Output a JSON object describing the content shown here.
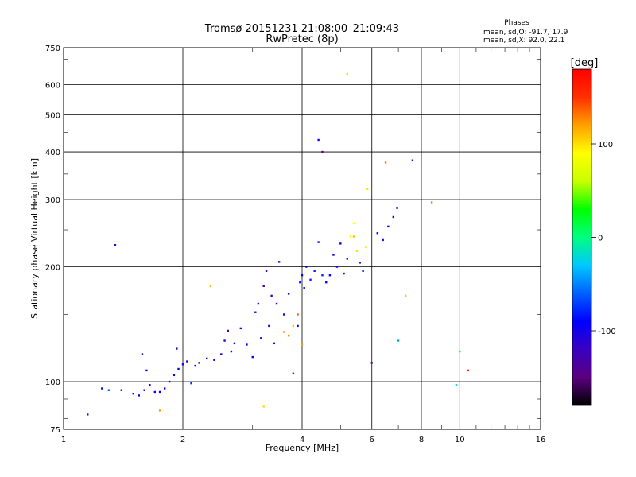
{
  "chart_data": {
    "type": "scatter",
    "title": "Tromsø 20151231 21:08:00–21:09:43",
    "subtitle": "RwPretec (8p)",
    "xlabel": "Frequency [MHz]",
    "ylabel": "Stationary phase Virtual Height [km]",
    "x_scale": "log",
    "y_scale": "log",
    "xlim": [
      1,
      16
    ],
    "ylim": [
      75,
      750
    ],
    "x_ticks": [
      1,
      2,
      4,
      6,
      8,
      10,
      16
    ],
    "x_tick_labels": [
      "1",
      "2",
      "4",
      "6",
      "8",
      "10",
      "16"
    ],
    "y_ticks": [
      75,
      100,
      200,
      300,
      400,
      500,
      600,
      750
    ],
    "y_tick_labels": [
      "75",
      "100",
      "200",
      "300",
      "400",
      "500",
      "600",
      "750"
    ],
    "grid": true,
    "stats": {
      "heading": "Phases",
      "line_o": "mean, sd,O: -91.7, 17.9",
      "line_x": "mean, sd,X:  92.0, 22.1"
    },
    "colorbar": {
      "label": "[deg]",
      "range": [
        -180,
        180
      ],
      "ticks": [
        100,
        0,
        -100
      ],
      "tick_labels": [
        "100",
        "0",
        "-100"
      ],
      "colormap": [
        "#000000",
        "#5a0080",
        "#3a00c0",
        "#0000ff",
        "#0060ff",
        "#00c8ff",
        "#00ff80",
        "#00ff00",
        "#c8ff00",
        "#ffff00",
        "#ffa000",
        "#ff3000",
        "#ff0000"
      ]
    },
    "series": [
      {
        "points": [
          [
            1.15,
            82,
            -80
          ],
          [
            1.25,
            96,
            -90
          ],
          [
            1.3,
            95,
            -60
          ],
          [
            1.35,
            228,
            -110
          ],
          [
            1.4,
            95,
            -100
          ],
          [
            1.5,
            93,
            -95
          ],
          [
            1.55,
            92,
            -100
          ],
          [
            1.58,
            118,
            -120
          ],
          [
            1.6,
            95,
            -100
          ],
          [
            1.62,
            107,
            -95
          ],
          [
            1.65,
            98,
            -90
          ],
          [
            1.7,
            94,
            -100
          ],
          [
            1.75,
            94,
            -95
          ],
          [
            1.8,
            96,
            -90
          ],
          [
            1.85,
            100,
            -90
          ],
          [
            1.9,
            104,
            -95
          ],
          [
            1.93,
            122,
            -110
          ],
          [
            1.95,
            108,
            -90
          ],
          [
            2.0,
            111,
            -95
          ],
          [
            2.05,
            113,
            -100
          ],
          [
            2.1,
            99,
            -80
          ],
          [
            2.15,
            110,
            -90
          ],
          [
            2.2,
            112,
            -95
          ],
          [
            2.3,
            115,
            -90
          ],
          [
            2.4,
            114,
            -90
          ],
          [
            2.5,
            118,
            -95
          ],
          [
            2.55,
            128,
            -110
          ],
          [
            2.6,
            136,
            -120
          ],
          [
            2.65,
            120,
            -95
          ],
          [
            2.7,
            126,
            -100
          ],
          [
            2.8,
            138,
            -120
          ],
          [
            2.9,
            125,
            -95
          ],
          [
            3.0,
            116,
            -90
          ],
          [
            3.05,
            152,
            -120
          ],
          [
            3.1,
            160,
            -130
          ],
          [
            3.15,
            130,
            -110
          ],
          [
            3.2,
            178,
            -130
          ],
          [
            3.25,
            195,
            -120
          ],
          [
            3.3,
            140,
            -110
          ],
          [
            3.35,
            168,
            -120
          ],
          [
            3.4,
            126,
            -120
          ],
          [
            3.45,
            160,
            -120
          ],
          [
            3.5,
            206,
            -110
          ],
          [
            3.6,
            150,
            -100
          ],
          [
            3.7,
            170,
            -100
          ],
          [
            3.8,
            105,
            -80
          ],
          [
            3.9,
            140,
            -90
          ],
          [
            3.95,
            182,
            -80
          ],
          [
            4.0,
            190,
            -90
          ],
          [
            4.05,
            176,
            -85
          ],
          [
            4.1,
            200,
            -90
          ],
          [
            4.2,
            185,
            -80
          ],
          [
            4.3,
            195,
            -80
          ],
          [
            4.4,
            232,
            -100
          ],
          [
            4.5,
            190,
            -80
          ],
          [
            4.6,
            182,
            -90
          ],
          [
            4.7,
            190,
            -90
          ],
          [
            4.8,
            215,
            -95
          ],
          [
            4.9,
            200,
            -90
          ],
          [
            5.0,
            230,
            -90
          ],
          [
            5.1,
            192,
            -85
          ],
          [
            5.2,
            210,
            -90
          ],
          [
            5.3,
            240,
            80
          ],
          [
            5.4,
            260,
            90
          ],
          [
            5.5,
            220,
            100
          ],
          [
            5.6,
            205,
            -80
          ],
          [
            5.7,
            195,
            -80
          ],
          [
            6.2,
            245,
            -90
          ],
          [
            6.4,
            235,
            -85
          ],
          [
            6.6,
            255,
            -90
          ],
          [
            6.8,
            270,
            -90
          ],
          [
            6.95,
            285,
            -80
          ],
          [
            3.6,
            135,
            120
          ],
          [
            3.7,
            132,
            130
          ],
          [
            3.8,
            140,
            110
          ],
          [
            3.9,
            150,
            140
          ],
          [
            4.0,
            125,
            120
          ],
          [
            5.4,
            240,
            110
          ],
          [
            5.8,
            225,
            100
          ],
          [
            5.85,
            320,
            100
          ],
          [
            5.2,
            640,
            100
          ],
          [
            4.4,
            430,
            -100
          ],
          [
            4.5,
            400,
            -150
          ],
          [
            6.5,
            375,
            130
          ],
          [
            7.6,
            380,
            -120
          ],
          [
            8.5,
            295,
            130
          ],
          [
            10.5,
            107,
            160
          ],
          [
            9.8,
            98,
            -20
          ],
          [
            10.0,
            120,
            30
          ],
          [
            2.35,
            178,
            110
          ],
          [
            3.2,
            86,
            100
          ],
          [
            1.75,
            84,
            120
          ],
          [
            7.3,
            168,
            110
          ],
          [
            7.0,
            128,
            -40
          ],
          [
            6.0,
            112,
            -140
          ]
        ]
      }
    ]
  }
}
